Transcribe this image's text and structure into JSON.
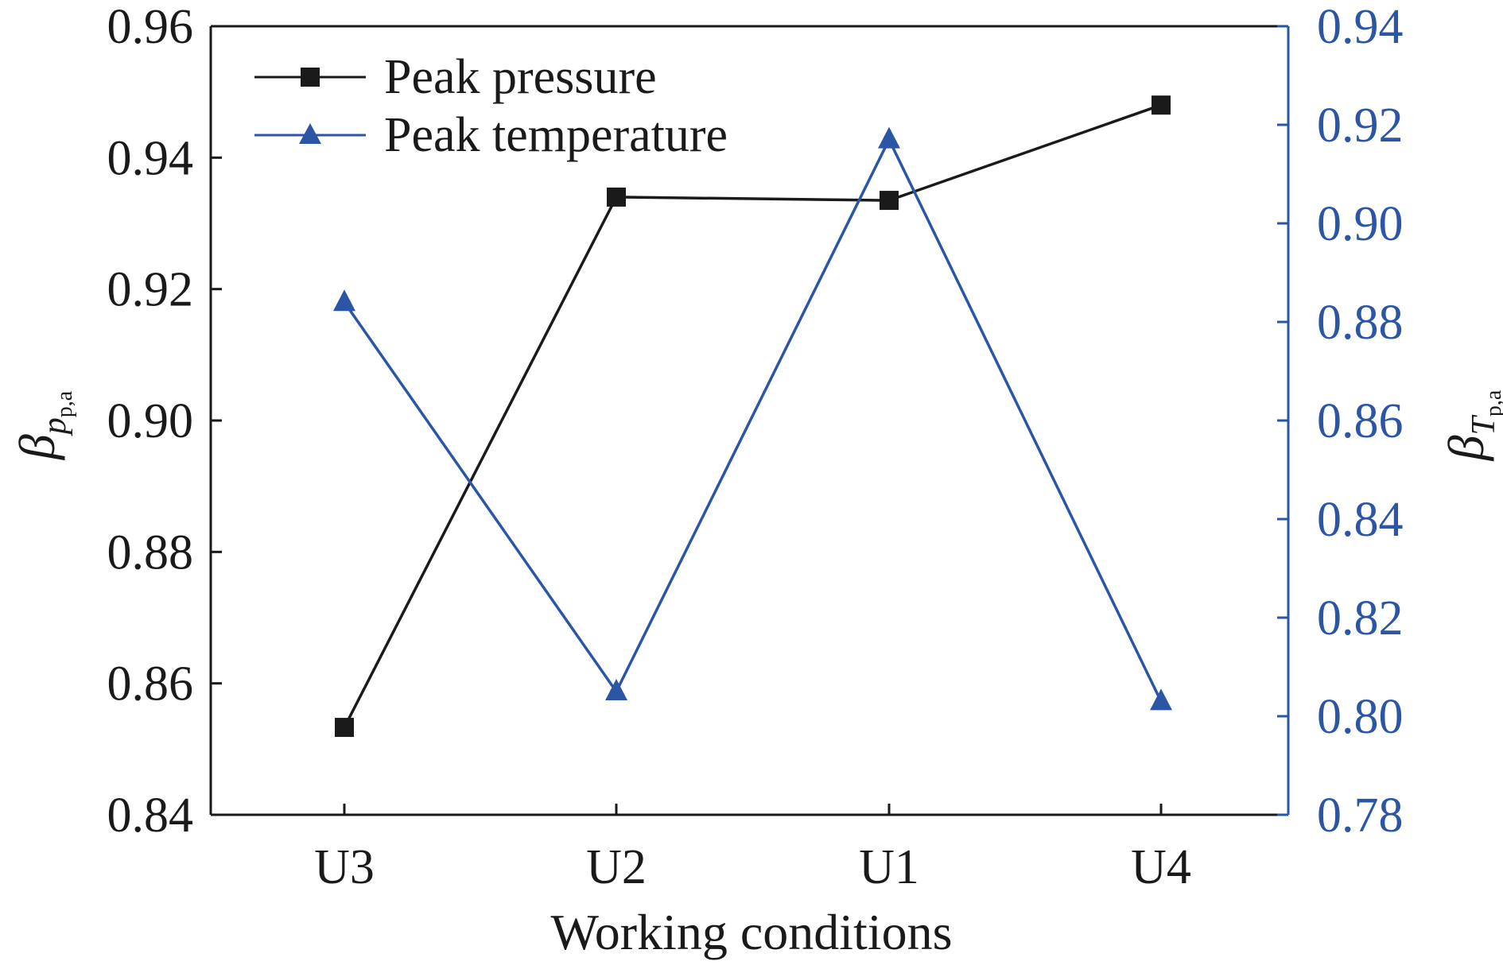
{
  "chart_data": {
    "type": "line",
    "categories": [
      "U3",
      "U2",
      "U1",
      "U4"
    ],
    "xlabel": "Working conditions",
    "y_left": {
      "label_symbol": "β",
      "label_sub": "p",
      "label_subsub": "p,a",
      "lim": [
        0.84,
        0.96
      ],
      "ticks": [
        "0.84",
        "0.86",
        "0.88",
        "0.90",
        "0.92",
        "0.94",
        "0.96"
      ],
      "color": "#1a1a1a"
    },
    "y_right": {
      "label_symbol": "β",
      "label_sub": "T",
      "label_subsub": "p,a",
      "lim": [
        0.78,
        0.94
      ],
      "ticks": [
        "0.78",
        "0.80",
        "0.82",
        "0.84",
        "0.86",
        "0.88",
        "0.90",
        "0.92",
        "0.94"
      ],
      "color": "#2b56a6"
    },
    "series": [
      {
        "name": "Peak pressure",
        "axis": "left",
        "marker": "square",
        "color": "#1a1a1a",
        "values": [
          0.8533,
          0.934,
          0.9335,
          0.948
        ]
      },
      {
        "name": "Peak temperature",
        "axis": "right",
        "marker": "triangle",
        "color": "#2b56a6",
        "values": [
          0.884,
          0.805,
          0.917,
          0.803
        ]
      }
    ],
    "legend_position": "top-left",
    "grid": false
  }
}
